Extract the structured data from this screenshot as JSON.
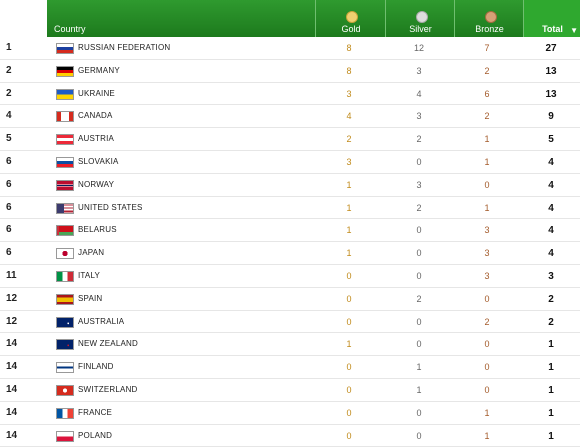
{
  "header": {
    "country": "Country",
    "gold": "Gold",
    "silver": "Silver",
    "bronze": "Bronze",
    "total": "Total",
    "sort_icon": "chevron-down-icon"
  },
  "colors": {
    "header_green": "#2f9a2f",
    "gold_dot": "#f0d070",
    "silver_dot": "#dddddd",
    "bronze_dot": "#d6a076"
  },
  "rows": [
    {
      "rank": "1",
      "country": "RUSSIAN FEDERATION",
      "gold": "8",
      "silver": "12",
      "bronze": "7",
      "total": "27"
    },
    {
      "rank": "2",
      "country": "GERMANY",
      "gold": "8",
      "silver": "3",
      "bronze": "2",
      "total": "13"
    },
    {
      "rank": "2",
      "country": "UKRAINE",
      "gold": "3",
      "silver": "4",
      "bronze": "6",
      "total": "13"
    },
    {
      "rank": "4",
      "country": "CANADA",
      "gold": "4",
      "silver": "3",
      "bronze": "2",
      "total": "9"
    },
    {
      "rank": "5",
      "country": "AUSTRIA",
      "gold": "2",
      "silver": "2",
      "bronze": "1",
      "total": "5"
    },
    {
      "rank": "6",
      "country": "SLOVAKIA",
      "gold": "3",
      "silver": "0",
      "bronze": "1",
      "total": "4"
    },
    {
      "rank": "6",
      "country": "NORWAY",
      "gold": "1",
      "silver": "3",
      "bronze": "0",
      "total": "4"
    },
    {
      "rank": "6",
      "country": "UNITED STATES",
      "gold": "1",
      "silver": "2",
      "bronze": "1",
      "total": "4"
    },
    {
      "rank": "6",
      "country": "BELARUS",
      "gold": "1",
      "silver": "0",
      "bronze": "3",
      "total": "4"
    },
    {
      "rank": "6",
      "country": "JAPAN",
      "gold": "1",
      "silver": "0",
      "bronze": "3",
      "total": "4"
    },
    {
      "rank": "11",
      "country": "ITALY",
      "gold": "0",
      "silver": "0",
      "bronze": "3",
      "total": "3"
    },
    {
      "rank": "12",
      "country": "SPAIN",
      "gold": "0",
      "silver": "2",
      "bronze": "0",
      "total": "2"
    },
    {
      "rank": "12",
      "country": "AUSTRALIA",
      "gold": "0",
      "silver": "0",
      "bronze": "2",
      "total": "2"
    },
    {
      "rank": "14",
      "country": "NEW ZEALAND",
      "gold": "1",
      "silver": "0",
      "bronze": "0",
      "total": "1"
    },
    {
      "rank": "14",
      "country": "FINLAND",
      "gold": "0",
      "silver": "1",
      "bronze": "0",
      "total": "1"
    },
    {
      "rank": "14",
      "country": "SWITZERLAND",
      "gold": "0",
      "silver": "1",
      "bronze": "0",
      "total": "1"
    },
    {
      "rank": "14",
      "country": "FRANCE",
      "gold": "0",
      "silver": "0",
      "bronze": "1",
      "total": "1"
    },
    {
      "rank": "14",
      "country": "POLAND",
      "gold": "0",
      "silver": "0",
      "bronze": "1",
      "total": "1"
    }
  ]
}
